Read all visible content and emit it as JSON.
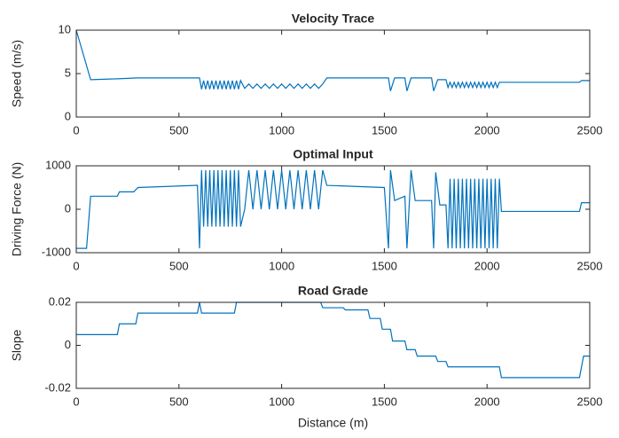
{
  "chart_data": [
    {
      "type": "line",
      "title": "Velocity Trace",
      "ylabel": "Speed (m/s)",
      "x": [
        0,
        70,
        200,
        300,
        600,
        610,
        620,
        630,
        640,
        650,
        660,
        670,
        680,
        690,
        700,
        710,
        720,
        730,
        740,
        750,
        760,
        770,
        780,
        790,
        800,
        820,
        840,
        860,
        880,
        900,
        920,
        940,
        960,
        980,
        1000,
        1020,
        1040,
        1060,
        1080,
        1100,
        1120,
        1140,
        1160,
        1180,
        1200,
        1220,
        1520,
        1530,
        1550,
        1600,
        1610,
        1630,
        1730,
        1740,
        1760,
        1800,
        1810,
        1820,
        1830,
        1840,
        1850,
        1860,
        1870,
        1880,
        1890,
        1900,
        1910,
        1920,
        1930,
        1940,
        1950,
        1960,
        1970,
        1980,
        1990,
        2000,
        2010,
        2020,
        2030,
        2040,
        2050,
        2060,
        2450,
        2460,
        2500
      ],
      "series": [
        {
          "color": "#0072bd",
          "values": [
            10,
            4.3,
            4.4,
            4.5,
            4.5,
            3.2,
            4.2,
            3.2,
            4.2,
            3.2,
            4.2,
            3.2,
            4.2,
            3.2,
            4.2,
            3.2,
            4.2,
            3.2,
            4.2,
            3.2,
            4.2,
            3.2,
            4.2,
            3.2,
            4.2,
            3.3,
            3.8,
            3.3,
            3.8,
            3.3,
            3.8,
            3.3,
            3.8,
            3.3,
            3.8,
            3.3,
            3.8,
            3.3,
            3.8,
            3.3,
            3.8,
            3.3,
            3.8,
            3.3,
            3.8,
            4.5,
            4.5,
            3.0,
            4.5,
            4.5,
            3.0,
            4.5,
            4.5,
            3.0,
            4.3,
            4.3,
            3.4,
            4.0,
            3.4,
            4.0,
            3.4,
            4.0,
            3.4,
            4.0,
            3.4,
            4.0,
            3.4,
            4.0,
            3.4,
            4.0,
            3.4,
            4.0,
            3.4,
            4.0,
            3.4,
            4.0,
            3.4,
            4.0,
            3.4,
            4.0,
            3.4,
            4.0,
            4.0,
            4.2,
            4.2
          ]
        }
      ],
      "xlim": [
        0,
        2500
      ],
      "xticks": [
        0,
        500,
        1000,
        1500,
        2000,
        2500
      ],
      "ylim": [
        0,
        10
      ],
      "yticks": [
        0,
        5,
        10
      ]
    },
    {
      "type": "line",
      "title": "Optimal Input",
      "ylabel": "Driving Force (N)",
      "x": [
        0,
        50,
        70,
        200,
        210,
        280,
        300,
        590,
        600,
        610,
        620,
        630,
        640,
        650,
        660,
        670,
        680,
        690,
        700,
        710,
        720,
        730,
        740,
        750,
        760,
        770,
        780,
        790,
        800,
        820,
        840,
        860,
        880,
        900,
        920,
        940,
        960,
        980,
        1000,
        1020,
        1040,
        1060,
        1080,
        1100,
        1120,
        1140,
        1160,
        1180,
        1200,
        1220,
        1500,
        1520,
        1530,
        1550,
        1600,
        1610,
        1630,
        1650,
        1730,
        1740,
        1750,
        1770,
        1800,
        1810,
        1820,
        1830,
        1840,
        1850,
        1860,
        1870,
        1880,
        1890,
        1900,
        1910,
        1920,
        1930,
        1940,
        1950,
        1960,
        1970,
        1980,
        1990,
        2000,
        2010,
        2020,
        2030,
        2040,
        2050,
        2060,
        2070,
        2450,
        2460,
        2500
      ],
      "series": [
        {
          "color": "#0072bd",
          "values": [
            -900,
            -900,
            300,
            300,
            400,
            400,
            500,
            550,
            -900,
            900,
            -400,
            900,
            -400,
            900,
            -400,
            900,
            -400,
            900,
            -400,
            900,
            -400,
            900,
            -400,
            900,
            -400,
            900,
            -400,
            900,
            -400,
            0,
            900,
            0,
            900,
            0,
            900,
            0,
            900,
            0,
            900,
            0,
            900,
            0,
            900,
            0,
            900,
            0,
            900,
            0,
            900,
            550,
            500,
            -900,
            900,
            200,
            300,
            -900,
            900,
            200,
            200,
            -900,
            850,
            100,
            100,
            -900,
            700,
            -900,
            700,
            -900,
            700,
            -900,
            700,
            -900,
            700,
            -900,
            700,
            -900,
            700,
            -900,
            700,
            -900,
            700,
            -900,
            700,
            -900,
            700,
            -900,
            700,
            -900,
            700,
            -50,
            -50,
            150,
            150
          ]
        }
      ],
      "xlim": [
        0,
        2500
      ],
      "xticks": [
        0,
        500,
        1000,
        1500,
        2000,
        2500
      ],
      "ylim": [
        -1000,
        1000
      ],
      "yticks": [
        -1000,
        0,
        1000
      ]
    },
    {
      "type": "line",
      "title": "Road Grade",
      "ylabel": "Slope",
      "xlabel": "Distance (m)",
      "x": [
        0,
        200,
        210,
        290,
        300,
        590,
        600,
        610,
        770,
        780,
        1190,
        1200,
        1300,
        1310,
        1420,
        1430,
        1480,
        1490,
        1530,
        1540,
        1600,
        1610,
        1650,
        1660,
        1750,
        1760,
        1800,
        1810,
        2060,
        2070,
        2450,
        2470,
        2500
      ],
      "series": [
        {
          "color": "#0072bd",
          "values": [
            0.005,
            0.005,
            0.01,
            0.01,
            0.015,
            0.015,
            0.02,
            0.015,
            0.015,
            0.02,
            0.02,
            0.0175,
            0.0175,
            0.0165,
            0.0165,
            0.0125,
            0.0125,
            0.0075,
            0.0075,
            0.002,
            0.002,
            -0.002,
            -0.002,
            -0.005,
            -0.005,
            -0.0075,
            -0.0075,
            -0.01,
            -0.01,
            -0.015,
            -0.015,
            -0.005,
            -0.005
          ]
        }
      ],
      "xlim": [
        0,
        2500
      ],
      "xticks": [
        0,
        500,
        1000,
        1500,
        2000,
        2500
      ],
      "ylim": [
        -0.02,
        0.02
      ],
      "yticks": [
        -0.02,
        0,
        0.02
      ]
    }
  ]
}
